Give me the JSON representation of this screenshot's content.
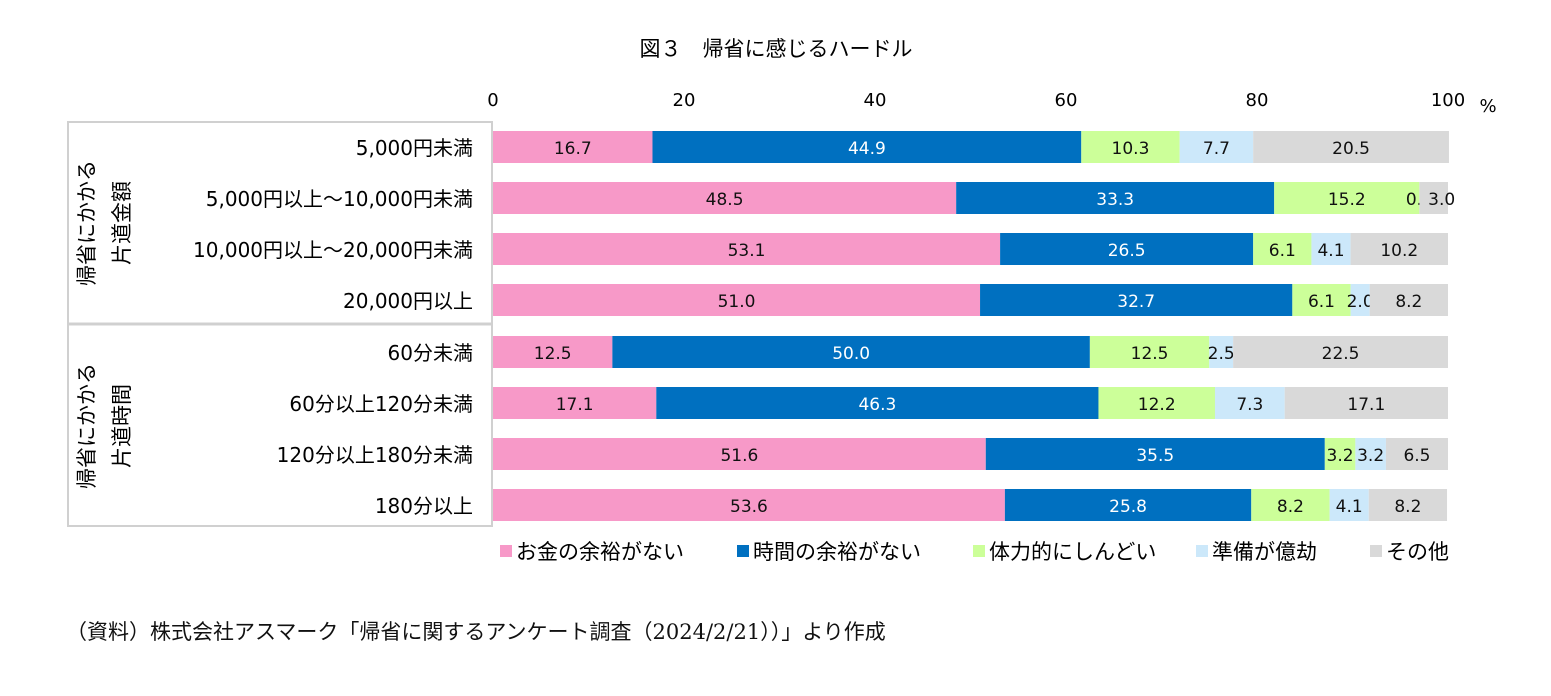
{
  "chart_data": {
    "type": "bar",
    "orientation": "horizontal",
    "stacked": true,
    "title": "図３　帰省に感じるハードル",
    "xlim": [
      0,
      100
    ],
    "x_ticks": [
      "0",
      "20",
      "40",
      "60",
      "80",
      "100"
    ],
    "x_unit": "%",
    "groups": [
      {
        "label": "帰省にかかる片道金額",
        "lines": [
          "帰省にかかる",
          "片道金額"
        ],
        "categories": [
          "5,000円未満",
          "5,000円以上～10,000円未満",
          "10,000円以上～20,000円未満",
          "20,000円以上"
        ]
      },
      {
        "label": "帰省にかかる片道時間",
        "lines": [
          "帰省にかかる",
          "片道時間"
        ],
        "categories": [
          "60分未満",
          "60分以上120分未満",
          "120分以上180分未満",
          "180分以上"
        ]
      }
    ],
    "categories": [
      "5,000円未満",
      "5,000円以上～10,000円未満",
      "10,000円以上～20,000円未満",
      "20,000円以上",
      "60分未満",
      "60分以上120分未満",
      "120分以上180分未満",
      "180分以上"
    ],
    "series": [
      {
        "name": "お金の余裕がない",
        "color": "#f799c8",
        "values": [
          16.7,
          48.5,
          53.1,
          51.0,
          12.5,
          17.1,
          51.6,
          53.6
        ]
      },
      {
        "name": "時間の余裕がない",
        "color": "#0070c0",
        "values": [
          44.9,
          33.3,
          26.5,
          32.7,
          50.0,
          46.3,
          35.5,
          25.8
        ]
      },
      {
        "name": "体力的にしんどい",
        "color": "#ccff99",
        "values": [
          10.3,
          15.2,
          6.1,
          6.1,
          12.5,
          12.2,
          3.2,
          8.2
        ]
      },
      {
        "name": "準備が億劫",
        "color": "#cce8fa",
        "values": [
          7.7,
          0.0,
          4.1,
          2.0,
          2.5,
          7.3,
          3.2,
          4.1
        ]
      },
      {
        "name": "その他",
        "color": "#d9d9d9",
        "values": [
          20.5,
          3.0,
          10.2,
          8.2,
          22.5,
          17.1,
          6.5,
          8.2
        ]
      }
    ],
    "legend_position": "bottom",
    "grid": false
  },
  "footnote": "（資料）株式会社アスマーク「帰省に関するアンケート調査（2024/2/21））」より作成"
}
